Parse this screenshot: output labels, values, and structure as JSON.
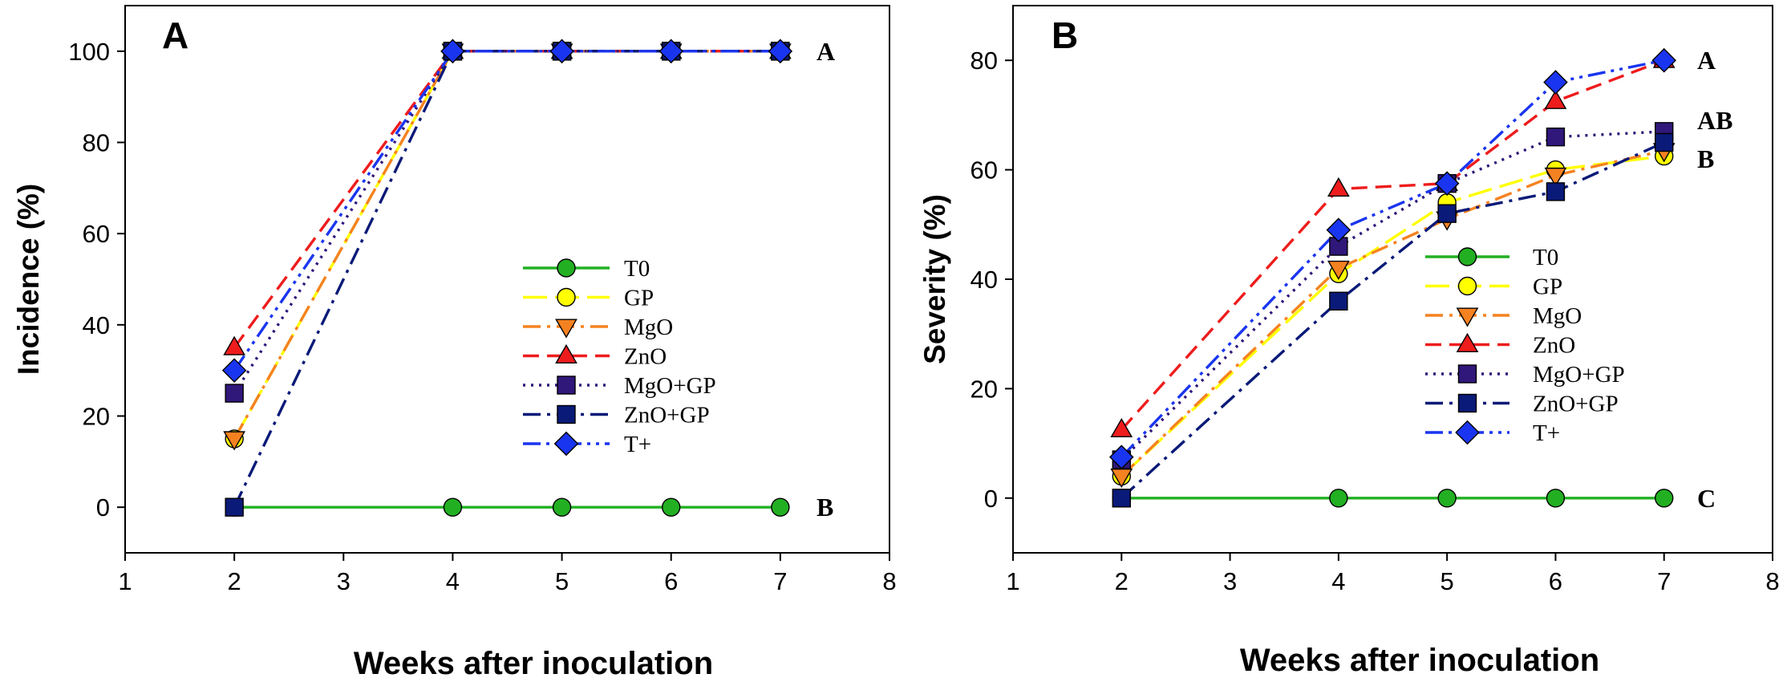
{
  "chart_data": [
    {
      "type": "line",
      "panel_label": "A",
      "xlabel": "Weeks after inoculation",
      "ylabel": "Incidence (%)",
      "xlim": [
        1,
        8
      ],
      "ylim": [
        -10,
        110
      ],
      "xticks": [
        1,
        2,
        3,
        4,
        5,
        6,
        7,
        8
      ],
      "yticks": [
        0,
        20,
        40,
        60,
        80,
        100
      ],
      "grid": false,
      "legend_position": "center-right",
      "group_labels": [
        {
          "text": "A",
          "x": 7,
          "y": 100
        },
        {
          "text": "B",
          "x": 7,
          "y": 0
        }
      ],
      "series": [
        {
          "name": "T0",
          "color": "#22b022",
          "marker": "circle",
          "dash": "solid",
          "x": [
            2,
            4,
            5,
            6,
            7
          ],
          "y": [
            0,
            0,
            0,
            0,
            0
          ]
        },
        {
          "name": "GP",
          "color": "#ffff00",
          "marker": "circle",
          "dash": "longdash",
          "x": [
            2,
            4,
            5,
            6,
            7
          ],
          "y": [
            15,
            100,
            100,
            100,
            100
          ]
        },
        {
          "name": "MgO",
          "color": "#f58220",
          "marker": "triangle-down",
          "dash": "dashdot",
          "x": [
            2,
            4,
            5,
            6,
            7
          ],
          "y": [
            15,
            100,
            100,
            100,
            100
          ]
        },
        {
          "name": "ZnO",
          "color": "#ee1c1c",
          "marker": "triangle-up",
          "dash": "dash",
          "x": [
            2,
            4,
            5,
            6,
            7
          ],
          "y": [
            35,
            100,
            100,
            100,
            100
          ]
        },
        {
          "name": "MgO+GP",
          "color": "#30177a",
          "marker": "square",
          "dash": "dot",
          "x": [
            2,
            4,
            5,
            6,
            7
          ],
          "y": [
            25,
            100,
            100,
            100,
            100
          ]
        },
        {
          "name": "ZnO+GP",
          "color": "#0a1a78",
          "marker": "square",
          "dash": "dashdot",
          "x": [
            2,
            4,
            5,
            6,
            7
          ],
          "y": [
            0,
            100,
            100,
            100,
            100
          ]
        },
        {
          "name": "T+",
          "color": "#1a35f0",
          "marker": "diamond",
          "dash": "dashdotdot",
          "x": [
            2,
            4,
            5,
            6,
            7
          ],
          "y": [
            30,
            100,
            100,
            100,
            100
          ]
        }
      ]
    },
    {
      "type": "line",
      "panel_label": "B",
      "xlabel": "Weeks after inoculation",
      "ylabel": "Severity (%)",
      "xlim": [
        1,
        8
      ],
      "ylim": [
        -10,
        90
      ],
      "xticks": [
        1,
        2,
        3,
        4,
        5,
        6,
        7,
        8
      ],
      "yticks": [
        0,
        20,
        40,
        60,
        80
      ],
      "grid": false,
      "legend_position": "center",
      "group_labels": [
        {
          "text": "A",
          "x": 7,
          "y": 80
        },
        {
          "text": "AB",
          "x": 7,
          "y": 69
        },
        {
          "text": "B",
          "x": 7,
          "y": 62
        },
        {
          "text": "C",
          "x": 7,
          "y": 0
        }
      ],
      "series": [
        {
          "name": "T0",
          "color": "#22b022",
          "marker": "circle",
          "dash": "solid",
          "x": [
            2,
            4,
            5,
            6,
            7
          ],
          "y": [
            0,
            0,
            0,
            0,
            0
          ]
        },
        {
          "name": "GP",
          "color": "#ffff00",
          "marker": "circle",
          "dash": "longdash",
          "x": [
            2,
            4,
            5,
            6,
            7
          ],
          "y": [
            4,
            41,
            54,
            60,
            62.5
          ]
        },
        {
          "name": "MgO",
          "color": "#f58220",
          "marker": "triangle-down",
          "dash": "dashdot",
          "x": [
            2,
            4,
            5,
            6,
            7
          ],
          "y": [
            4,
            42,
            51,
            59,
            63.5
          ]
        },
        {
          "name": "ZnO",
          "color": "#ee1c1c",
          "marker": "triangle-up",
          "dash": "dash",
          "x": [
            2,
            4,
            5,
            6,
            7
          ],
          "y": [
            12.5,
            56.5,
            57.5,
            72.5,
            80
          ]
        },
        {
          "name": "MgO+GP",
          "color": "#30177a",
          "marker": "square",
          "dash": "dot",
          "x": [
            2,
            4,
            5,
            6,
            7
          ],
          "y": [
            7,
            46,
            57.5,
            66,
            67
          ]
        },
        {
          "name": "ZnO+GP",
          "color": "#0a1a78",
          "marker": "square",
          "dash": "dashdot",
          "x": [
            2,
            4,
            5,
            6,
            7
          ],
          "y": [
            0,
            36,
            52,
            56,
            65
          ]
        },
        {
          "name": "T+",
          "color": "#1a35f0",
          "marker": "diamond",
          "dash": "dashdotdot",
          "x": [
            2,
            4,
            5,
            6,
            7
          ],
          "y": [
            7.5,
            49,
            57.5,
            76,
            80
          ]
        }
      ]
    }
  ]
}
